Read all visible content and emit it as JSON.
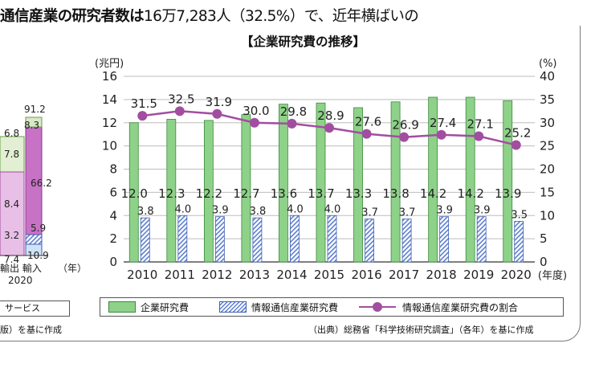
{
  "headline": {
    "part1": "通信産業の研究者数は",
    "part2": "16万7,283人（32.5%）",
    "part3": "で、近年横ばいの"
  },
  "chart_title": "【企業研究費の推移】",
  "source_note": "（出典）総務省「科学技術研究調査」（各年）を基に作成",
  "left_partial": {
    "values": [
      "91.2",
      "8.3",
      "6.8",
      "7.8",
      "66.2",
      "8.4",
      "3.2",
      "5.9",
      "7.4",
      "10.9"
    ],
    "labels": {
      "export_import": "輸出 輸入",
      "year_suffix": "（年）",
      "year": "2020"
    },
    "service_label": "サービス",
    "source_tail": "版）を基に作成"
  },
  "chart_data": {
    "type": "bar",
    "title": "【企業研究費の推移】",
    "categories": [
      "2010",
      "2011",
      "2012",
      "2013",
      "2014",
      "2015",
      "2016",
      "2017",
      "2018",
      "2019",
      "2020"
    ],
    "x_unit": "(年度)",
    "y_left": {
      "unit": "(兆円)",
      "range": [
        0,
        16
      ],
      "ticks": [
        0,
        2,
        4,
        6,
        8,
        10,
        12,
        14,
        16
      ]
    },
    "y_right": {
      "unit": "(%)",
      "range": [
        0,
        40
      ],
      "ticks": [
        0,
        5,
        10,
        15,
        20,
        25,
        30,
        35,
        40
      ]
    },
    "grid": "horizontal",
    "legend_position": "bottom",
    "series": [
      {
        "name": "企業研究費",
        "type": "bar",
        "axis": "left",
        "color": "#8ed189",
        "values": [
          12.0,
          12.3,
          12.2,
          12.7,
          13.6,
          13.7,
          13.3,
          13.8,
          14.2,
          14.2,
          13.9
        ],
        "labels": [
          "12.0",
          "12.3",
          "12.2",
          "12.7",
          "13.6",
          "13.7",
          "13.3",
          "13.8",
          "14.2",
          "14.2",
          "13.9"
        ]
      },
      {
        "name": "情報通信産業研究費",
        "type": "bar",
        "pattern": "hatch",
        "axis": "left",
        "color": "#5d7fd0",
        "values": [
          3.8,
          4.0,
          3.9,
          3.8,
          4.0,
          4.0,
          3.7,
          3.7,
          3.9,
          3.9,
          3.5
        ],
        "labels": [
          "3.8",
          "4.0",
          "3.9",
          "3.8",
          "4.0",
          "4.0",
          "3.7",
          "3.7",
          "3.9",
          "3.9",
          "3.5"
        ]
      },
      {
        "name": "情報通信産業研究費の割合",
        "type": "line",
        "axis": "right",
        "color": "#a24ea0",
        "values": [
          31.5,
          32.5,
          31.9,
          30.0,
          29.8,
          28.9,
          27.6,
          26.9,
          27.4,
          27.1,
          25.2
        ],
        "labels": [
          "31.5",
          "32.5",
          "31.9",
          "30.0",
          "29.8",
          "28.9",
          "27.6",
          "26.9",
          "27.4",
          "27.1",
          "25.2"
        ]
      }
    ]
  }
}
